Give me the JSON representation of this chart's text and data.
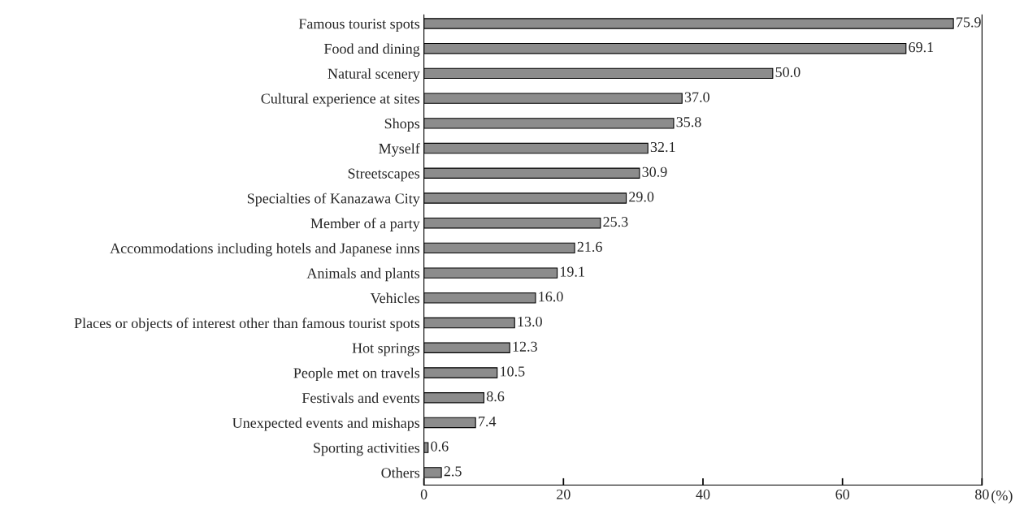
{
  "chart_data": {
    "type": "bar",
    "orientation": "horizontal",
    "xlabel": "(%)",
    "categories": [
      "Famous tourist spots",
      "Food and dining",
      "Natural scenery",
      "Cultural experience at sites",
      "Shops",
      "Myself",
      "Streetscapes",
      "Specialties of Kanazawa City",
      "Member of a party",
      "Accommodations including hotels and Japanese inns",
      "Animals and plants",
      "Vehicles",
      "Places or objects of interest other than famous tourist spots",
      "Hot springs",
      "People met on travels",
      "Festivals and events",
      "Unexpected events and mishaps",
      "Sporting activities",
      "Others"
    ],
    "values": [
      75.9,
      69.1,
      50.0,
      37.0,
      35.8,
      32.1,
      30.9,
      29.0,
      25.3,
      21.6,
      19.1,
      16.0,
      13.0,
      12.3,
      10.5,
      8.6,
      7.4,
      0.6,
      2.5
    ],
    "value_labels": [
      "75.9",
      "69.1",
      "50.0",
      "37.0",
      "35.8",
      "32.1",
      "30.9",
      "29.0",
      "25.3",
      "21.6",
      "19.1",
      "16.0",
      "13.0",
      "12.3",
      "10.5",
      "8.6",
      "7.4",
      "0.6",
      "2.5"
    ],
    "color": "#8c8c8c",
    "xlim": [
      0,
      80
    ],
    "xticks": [
      0,
      20,
      40,
      60,
      80
    ],
    "grid": false,
    "legend": false
  }
}
